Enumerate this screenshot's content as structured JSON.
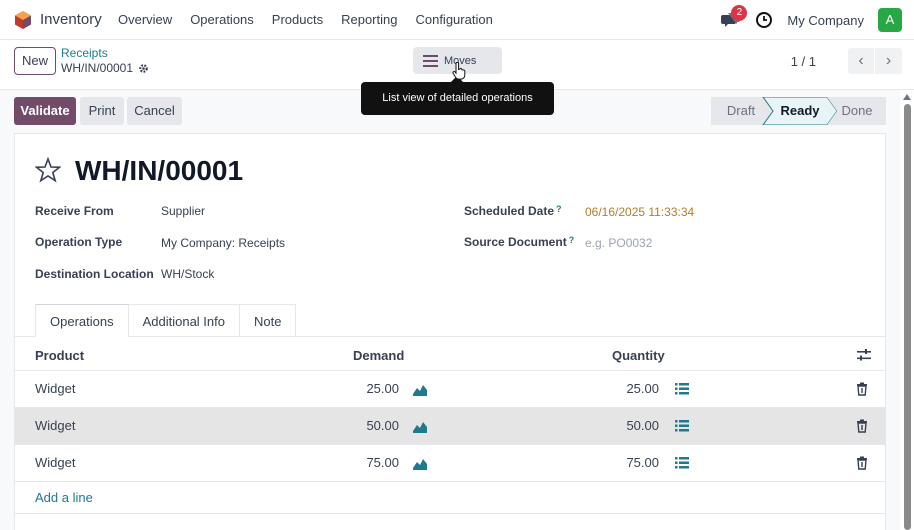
{
  "navbar": {
    "app_name": "Inventory",
    "menu": [
      "Overview",
      "Operations",
      "Products",
      "Reporting",
      "Configuration"
    ],
    "chat_badge": "2",
    "company": "My Company",
    "avatar_letter": "A"
  },
  "control": {
    "new_label": "New",
    "breadcrumb": "Receipts",
    "record_id": "WH/IN/00001",
    "moves_label": "Moves",
    "tooltip": "List view of detailed operations",
    "pager": "1 / 1"
  },
  "actions": {
    "validate": "Validate",
    "print": "Print",
    "cancel": "Cancel"
  },
  "status": {
    "steps": [
      "Draft",
      "Ready",
      "Done"
    ],
    "current": "Ready"
  },
  "form": {
    "title": "WH/IN/00001",
    "receive_from_label": "Receive From",
    "receive_from": "Supplier",
    "operation_type_label": "Operation Type",
    "operation_type": "My Company: Receipts",
    "destination_label": "Destination Location",
    "destination": "WH/Stock",
    "scheduled_date_label": "Scheduled Date",
    "scheduled_date": "06/16/2025 11:33:34",
    "source_document_label": "Source Document",
    "source_document_placeholder": "e.g. PO0032",
    "help_mark": "?"
  },
  "tabs": [
    "Operations",
    "Additional Info",
    "Note"
  ],
  "table": {
    "headers": {
      "product": "Product",
      "demand": "Demand",
      "quantity": "Quantity"
    },
    "rows": [
      {
        "product": "Widget",
        "demand": "25.00",
        "quantity": "25.00"
      },
      {
        "product": "Widget",
        "demand": "50.00",
        "quantity": "50.00"
      },
      {
        "product": "Widget",
        "demand": "75.00",
        "quantity": "75.00"
      }
    ],
    "add_line": "Add a line"
  },
  "colors": {
    "primary": "#714b67",
    "link": "#1f7a8c",
    "date": "#b07d2b"
  }
}
